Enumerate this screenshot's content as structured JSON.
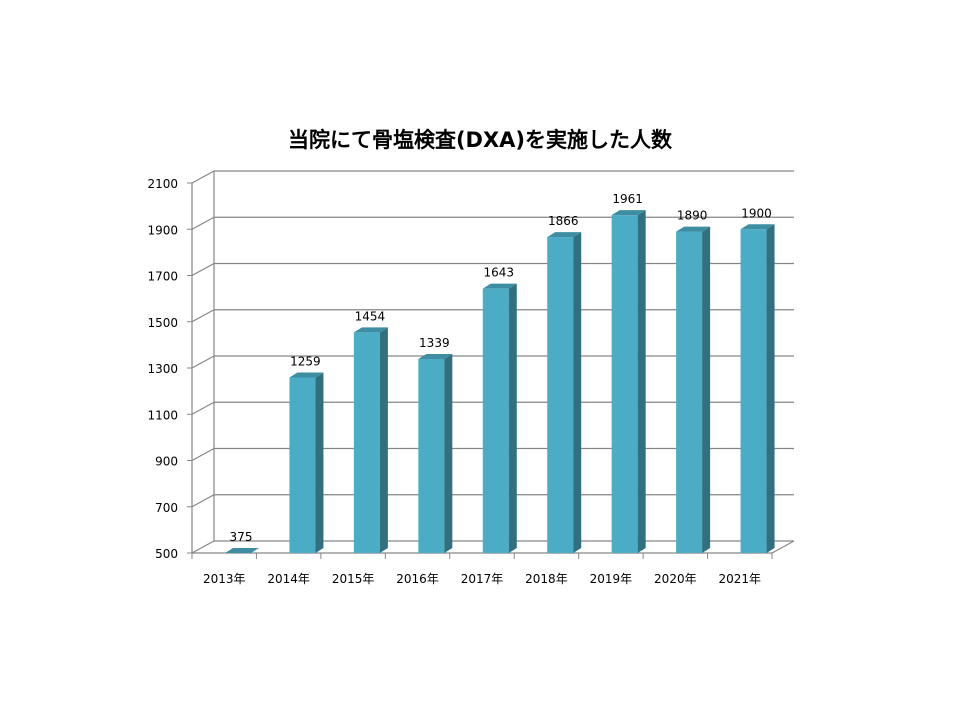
{
  "chart_data": {
    "type": "bar",
    "title": "当院にて骨塩検査(DXA)を実施した人数",
    "categories": [
      "2013年",
      "2014年",
      "2015年",
      "2016年",
      "2017年",
      "2018年",
      "2019年",
      "2020年",
      "2021年"
    ],
    "values": [
      375,
      1259,
      1454,
      1339,
      1643,
      1866,
      1961,
      1890,
      1900
    ],
    "data_labels": [
      "375",
      "1259",
      "1454",
      "1339",
      "1643",
      "1866",
      "1961",
      "1890",
      "1900"
    ],
    "ylim": [
      500,
      2100
    ],
    "yticks": [
      500,
      700,
      900,
      1100,
      1300,
      1500,
      1700,
      1900,
      2100
    ],
    "ytick_labels": [
      "500",
      "700",
      "900",
      "1100",
      "1300",
      "1500",
      "1700",
      "1900",
      "2100"
    ],
    "xlabel": "",
    "ylabel": "",
    "grid": true,
    "legend": false,
    "style": "3d-column",
    "colors": {
      "bar_front": "#4BACC6",
      "bar_side": "#31707F",
      "bar_top": "#3D8EA3",
      "gridline": "#868686",
      "axis": "#868686",
      "text": "#000000"
    }
  }
}
